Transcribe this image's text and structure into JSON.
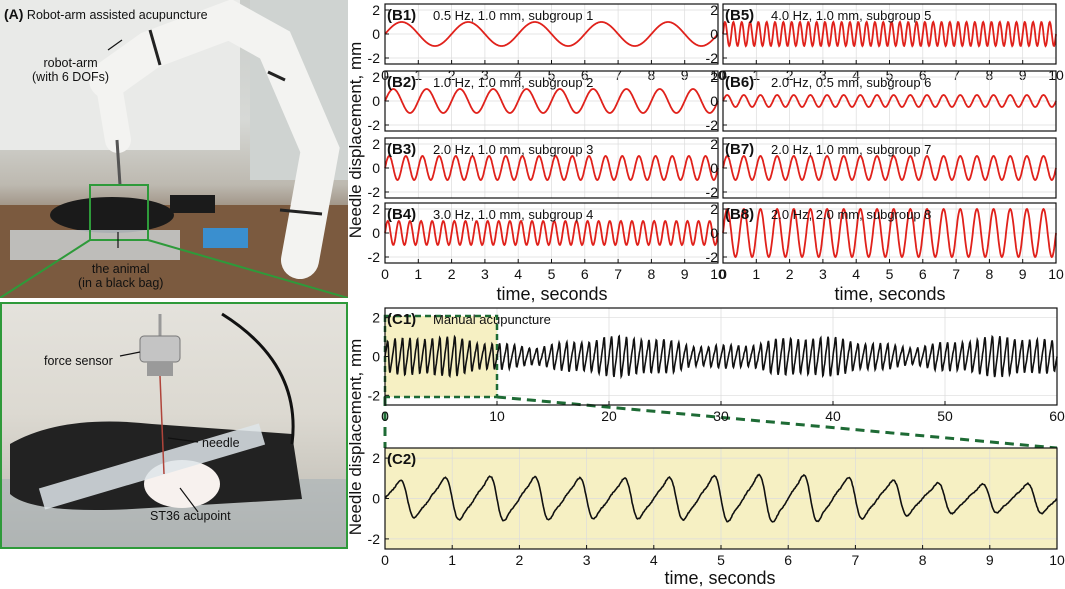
{
  "panelA": {
    "label": "(A)",
    "title": "Robot-arm assisted acupuncture",
    "robot_arm": "robot-arm",
    "robot_arm_dofs": "(with 6 DOFs)",
    "animal": "the animal",
    "animal_sub": "(in a black bag)",
    "force_sensor": "force sensor",
    "needle": "needle",
    "acupoint": "ST36 acupoint"
  },
  "axes": {
    "ylabel_top": "Needle displacement, mm",
    "ylabel_bottom": "Needle displacement, mm",
    "xlabel": "time, seconds"
  },
  "colors": {
    "robot_signal": "#e0211b",
    "manual_signal": "#111111",
    "zoom_fill": "#f6f0c3",
    "zoom_box": "#1e6b35",
    "photo_frame": "#2e9a3a"
  },
  "chart_data": [
    {
      "id": "B1",
      "type": "line",
      "label": "(B1)",
      "annotation": "0.5 Hz, 1.0 mm, subgroup 1",
      "freq_hz": 0.5,
      "amplitude_mm": 1.0,
      "xlim": [
        0,
        10
      ],
      "ylim": [
        -2.5,
        2.5
      ],
      "xticks": [
        0,
        1,
        2,
        3,
        4,
        5,
        6,
        7,
        8,
        9,
        10
      ],
      "yticks": [
        -2,
        0,
        2
      ],
      "grid": true
    },
    {
      "id": "B2",
      "type": "line",
      "label": "(B2)",
      "annotation": "1.0 Hz, 1.0 mm, subgroup 2",
      "freq_hz": 1.0,
      "amplitude_mm": 1.0,
      "xlim": [
        0,
        10
      ],
      "ylim": [
        -2.5,
        2.5
      ],
      "yticks": [
        -2,
        0,
        2
      ],
      "grid": true
    },
    {
      "id": "B3",
      "type": "line",
      "label": "(B3)",
      "annotation": "2.0 Hz, 1.0 mm, subgroup 3",
      "freq_hz": 2.0,
      "amplitude_mm": 1.0,
      "xlim": [
        0,
        10
      ],
      "ylim": [
        -2.5,
        2.5
      ],
      "yticks": [
        -2,
        0,
        2
      ],
      "grid": true
    },
    {
      "id": "B4",
      "type": "line",
      "label": "(B4)",
      "annotation": "3.0 Hz, 1.0 mm, subgroup 4",
      "freq_hz": 3.0,
      "amplitude_mm": 1.0,
      "xlim": [
        0,
        10
      ],
      "ylim": [
        -2.5,
        2.5
      ],
      "xticks": [
        0,
        1,
        2,
        3,
        4,
        5,
        6,
        7,
        8,
        9,
        10
      ],
      "yticks": [
        -2,
        0,
        2
      ],
      "grid": true
    },
    {
      "id": "B5",
      "type": "line",
      "label": "(B5)",
      "annotation": "4.0 Hz, 1.0 mm, subgroup 5",
      "freq_hz": 4.0,
      "amplitude_mm": 1.0,
      "xlim": [
        0,
        10
      ],
      "ylim": [
        -2.5,
        2.5
      ],
      "xticks": [
        0,
        1,
        2,
        3,
        4,
        5,
        6,
        7,
        8,
        9,
        10
      ],
      "yticks": [
        -2,
        0,
        2
      ],
      "grid": true
    },
    {
      "id": "B6",
      "type": "line",
      "label": "(B6)",
      "annotation": "2.0 Hz, 0.5 mm, subgroup 6",
      "freq_hz": 2.0,
      "amplitude_mm": 0.5,
      "xlim": [
        0,
        10
      ],
      "ylim": [
        -2.5,
        2.5
      ],
      "yticks": [
        -2,
        0,
        2
      ],
      "grid": true
    },
    {
      "id": "B7",
      "type": "line",
      "label": "(B7)",
      "annotation": "2.0 Hz, 1.0 mm, subgroup 7",
      "freq_hz": 2.0,
      "amplitude_mm": 1.0,
      "xlim": [
        0,
        10
      ],
      "ylim": [
        -2.5,
        2.5
      ],
      "yticks": [
        -2,
        0,
        2
      ],
      "grid": true
    },
    {
      "id": "B8",
      "type": "line",
      "label": "(B8)",
      "annotation": "2.0 Hz, 2.0 mm, subgroup 8",
      "freq_hz": 2.0,
      "amplitude_mm": 2.0,
      "xlim": [
        0,
        10
      ],
      "ylim": [
        -2.5,
        2.5
      ],
      "xticks": [
        0,
        1,
        2,
        3,
        4,
        5,
        6,
        7,
        8,
        9,
        10
      ],
      "yticks": [
        -2,
        0,
        2
      ],
      "grid": true
    },
    {
      "id": "C1",
      "type": "line",
      "label": "(C1)",
      "annotation": "Manual acupuncture",
      "freq_hz": 1.5,
      "amplitude_mm": 0.8,
      "xlim": [
        0,
        60
      ],
      "ylim": [
        -2.5,
        2.5
      ],
      "xticks": [
        0,
        10,
        20,
        30,
        40,
        50,
        60
      ],
      "yticks": [
        -2,
        0,
        2
      ],
      "grid": true,
      "highlight_x": [
        0,
        10
      ]
    },
    {
      "id": "C2",
      "type": "line",
      "label": "(C2)",
      "annotation": "",
      "freq_hz": 1.5,
      "amplitude_mm": 0.9,
      "xlim": [
        0,
        10
      ],
      "ylim": [
        -2.5,
        2.5
      ],
      "xticks": [
        0,
        1,
        2,
        3,
        4,
        5,
        6,
        7,
        8,
        9,
        10
      ],
      "yticks": [
        -2,
        0,
        2
      ],
      "grid": true
    }
  ]
}
